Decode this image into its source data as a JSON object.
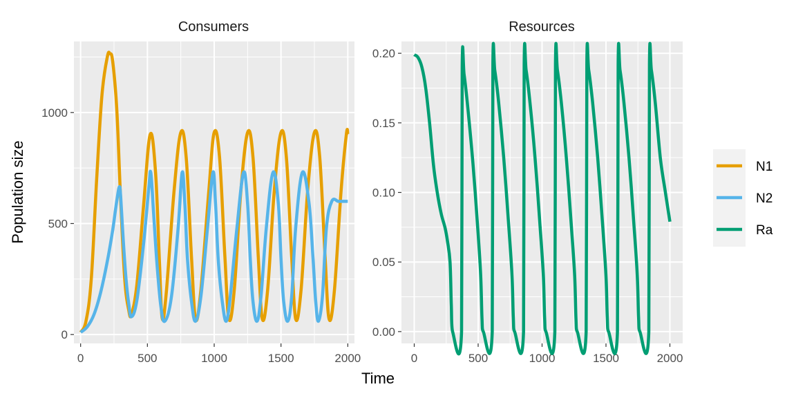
{
  "chart_data": {
    "type": "line",
    "xlabel": "Time",
    "ylabel": "Population size",
    "legend": {
      "position": "right",
      "entries": [
        {
          "key": "N1",
          "label": "N1",
          "color": "#E69F00"
        },
        {
          "key": "N2",
          "label": "N2",
          "color": "#56B4E9"
        },
        {
          "key": "Ra",
          "label": "Ra",
          "color": "#009E73"
        }
      ]
    },
    "panels": [
      {
        "title": "Consumers",
        "xlim": [
          -50,
          2050
        ],
        "ylim": [
          -40,
          1320
        ],
        "xticks": [
          0,
          500,
          1000,
          1500,
          2000
        ],
        "xtick_labels": [
          "0",
          "500",
          "1000",
          "1500",
          "2000"
        ],
        "yticks": [
          0,
          500,
          1000
        ],
        "ytick_labels": [
          "0",
          "500",
          "1000"
        ],
        "grid": true,
        "series": [
          {
            "key": "N1",
            "name": "N1",
            "color": "#E69F00",
            "x": [
              0,
              40,
              80,
              120,
              160,
              200,
              220,
              240,
              270,
              300,
              330,
              360,
              380,
              420,
              470,
              520,
              560,
              590,
              610,
              640,
              700,
              750,
              790,
              830,
              860,
              900,
              960,
              1000,
              1040,
              1080,
              1110,
              1150,
              1200,
              1250,
              1290,
              1330,
              1360,
              1400,
              1450,
              1500,
              1540,
              1580,
              1610,
              1650,
              1700,
              1750,
              1790,
              1830,
              1860,
              1900,
              1950,
              1990,
              2000
            ],
            "y": [
              10,
              60,
              250,
              700,
              1080,
              1250,
              1265,
              1230,
              1020,
              600,
              250,
              110,
              90,
              220,
              570,
              900,
              740,
              330,
              75,
              180,
              650,
              910,
              800,
              350,
              70,
              200,
              650,
              910,
              800,
              350,
              70,
              200,
              650,
              910,
              800,
              350,
              70,
              200,
              650,
              910,
              800,
              350,
              70,
              200,
              650,
              910,
              800,
              350,
              70,
              200,
              650,
              905,
              900
            ]
          },
          {
            "key": "N2",
            "name": "N2",
            "color": "#56B4E9",
            "x": [
              0,
              50,
              100,
              150,
              200,
              240,
              270,
              290,
              300,
              320,
              340,
              360,
              380,
              420,
              470,
              510,
              525,
              545,
              570,
              600,
              630,
              680,
              730,
              760,
              780,
              800,
              830,
              860,
              900,
              950,
              990,
              1010,
              1030,
              1060,
              1090,
              1120,
              1170,
              1220,
              1250,
              1270,
              1290,
              1320,
              1350,
              1390,
              1440,
              1480,
              1500,
              1520,
              1550,
              1580,
              1610,
              1660,
              1710,
              1740,
              1760,
              1780,
              1810,
              1840,
              1880,
              1930,
              1970,
              2000
            ],
            "y": [
              10,
              35,
              90,
              190,
              330,
              470,
              600,
              665,
              620,
              420,
              250,
              140,
              80,
              150,
              400,
              660,
              730,
              560,
              330,
              130,
              60,
              170,
              480,
              730,
              590,
              340,
              150,
              60,
              170,
              480,
              730,
              590,
              340,
              150,
              60,
              170,
              480,
              730,
              590,
              340,
              150,
              60,
              170,
              480,
              730,
              590,
              340,
              150,
              60,
              170,
              480,
              730,
              590,
              340,
              150,
              60,
              170,
              480,
              600,
              600,
              600,
              600
            ]
          },
          {
            "key": "N2_tail_fix",
            "hidden": true
          }
        ]
      },
      {
        "title": "Resources",
        "xlim": [
          -100,
          2100
        ],
        "ylim": [
          -0.0085,
          0.2085
        ],
        "xticks": [
          0,
          500,
          1000,
          1500,
          2000
        ],
        "xtick_labels": [
          "0",
          "500",
          "1000",
          "1500",
          "2000"
        ],
        "yticks": [
          0,
          0.05,
          0.1,
          0.15,
          0.2
        ],
        "ytick_labels": [
          "0.00",
          "0.05",
          "0.10",
          "0.15",
          "0.20"
        ],
        "grid": true,
        "series": [
          {
            "key": "Ra",
            "name": "Ra",
            "color": "#009E73",
            "x": [
              0,
              30,
              60,
              90,
              120,
              150,
              180,
              210,
              240,
              260,
              280,
              290,
              300,
              370,
              375,
              390,
              420,
              460,
              500,
              520,
              530,
              540,
              610,
              615,
              630,
              660,
              700,
              740,
              765,
              775,
              785,
              855,
              860,
              875,
              905,
              945,
              985,
              1010,
              1020,
              1030,
              1100,
              1105,
              1120,
              1150,
              1190,
              1230,
              1255,
              1265,
              1275,
              1345,
              1350,
              1365,
              1395,
              1435,
              1475,
              1500,
              1510,
              1520,
              1590,
              1595,
              1610,
              1640,
              1680,
              1720,
              1745,
              1755,
              1765,
              1835,
              1840,
              1855,
              1885,
              1925,
              1965,
              2000
            ],
            "y": [
              0.199,
              0.197,
              0.19,
              0.175,
              0.15,
              0.12,
              0.1,
              0.085,
              0.075,
              0.065,
              0.05,
              0.02,
              0,
              0,
              0.19,
              0.185,
              0.16,
              0.12,
              0.07,
              0.04,
              0.01,
              0,
              0,
              0.192,
              0.188,
              0.165,
              0.125,
              0.075,
              0.04,
              0.01,
              0,
              0,
              0.192,
              0.188,
              0.165,
              0.125,
              0.075,
              0.04,
              0.01,
              0,
              0,
              0.192,
              0.188,
              0.165,
              0.125,
              0.075,
              0.04,
              0.01,
              0,
              0,
              0.192,
              0.188,
              0.165,
              0.125,
              0.075,
              0.04,
              0.01,
              0,
              0,
              0.192,
              0.188,
              0.165,
              0.125,
              0.075,
              0.04,
              0.01,
              0,
              0,
              0.192,
              0.188,
              0.165,
              0.125,
              0.1,
              0.079
            ]
          }
        ]
      }
    ]
  }
}
